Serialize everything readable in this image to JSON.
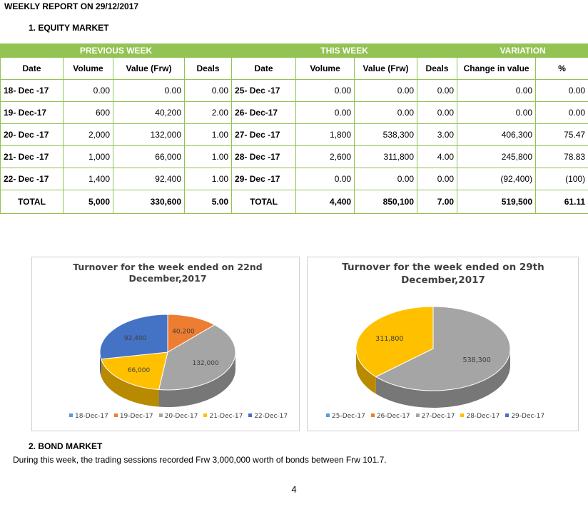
{
  "report_title": "WEEKLY REPORT ON 29/12/2017",
  "equity_heading": "1.    EQUITY MARKET",
  "table": {
    "groups": [
      "PREVIOUS WEEK",
      "THIS WEEK",
      "VARIATION"
    ],
    "columns": [
      "Date",
      "Volume",
      "Value (Frw)",
      "Deals",
      "Date",
      "Volume",
      "Value (Frw)",
      "Deals",
      "Change in value",
      "%"
    ],
    "rows": [
      [
        "18- Dec -17",
        "0.00",
        "0.00",
        "0.00",
        "25- Dec -17",
        "0.00",
        "0.00",
        "0.00",
        "0.00",
        "0.00"
      ],
      [
        "19- Dec-17",
        "600",
        "40,200",
        "2.00",
        "26- Dec-17",
        "0.00",
        "0.00",
        "0.00",
        "0.00",
        "0.00"
      ],
      [
        "20- Dec -17",
        "2,000",
        "132,000",
        "1.00",
        "27- Dec -17",
        "1,800",
        "538,300",
        "3.00",
        "406,300",
        "75.47"
      ],
      [
        "21- Dec  -17",
        "1,000",
        "66,000",
        "1.00",
        "28- Dec  -17",
        "2,600",
        "311,800",
        "4.00",
        "245,800",
        "78.83"
      ],
      [
        "22- Dec -17",
        "1,400",
        "92,400",
        "1.00",
        "29- Dec -17",
        "0.00",
        "0.00",
        "0.00",
        "(92,400)",
        "(100)"
      ]
    ],
    "total": [
      "TOTAL",
      "5,000",
      "330,600",
      "5.00",
      "TOTAL",
      "4,400",
      "850,100",
      "7.00",
      "519,500",
      "61.11"
    ]
  },
  "chart_data": [
    {
      "type": "pie",
      "title": "Turnover for the week ended on 22nd December,2017",
      "categories": [
        "18-Dec-17",
        "19-Dec-17",
        "20-Dec-17",
        "21-Dec-17",
        "22-Dec-17"
      ],
      "values": [
        0,
        40200,
        132000,
        66000,
        92400
      ],
      "data_labels": [
        "",
        "40,200",
        "132,000",
        "66,000",
        "92,400"
      ],
      "colors": [
        "#5b9bd5",
        "#ed7d31",
        "#a5a5a5",
        "#ffc000",
        "#4472c4"
      ],
      "legend": "bottom"
    },
    {
      "type": "pie",
      "title": "Turnover for the week ended on 29th December,2017",
      "categories": [
        "25-Dec-17",
        "26-Dec-17",
        "27-Dec-17",
        "28-Dec-17",
        "29-Dec-17"
      ],
      "values": [
        0,
        0,
        538300,
        311800,
        0
      ],
      "data_labels": [
        "",
        "",
        "538,300",
        "311,800",
        ""
      ],
      "colors": [
        "#5b9bd5",
        "#ed7d31",
        "#a5a5a5",
        "#ffc000",
        "#4472c4"
      ],
      "legend": "bottom"
    }
  ],
  "bond_heading": "2.    BOND MARKET",
  "bond_text": "During this week, the trading sessions recorded Frw 3,000,000 worth of bonds between Frw 101.7.",
  "page_number": "4"
}
